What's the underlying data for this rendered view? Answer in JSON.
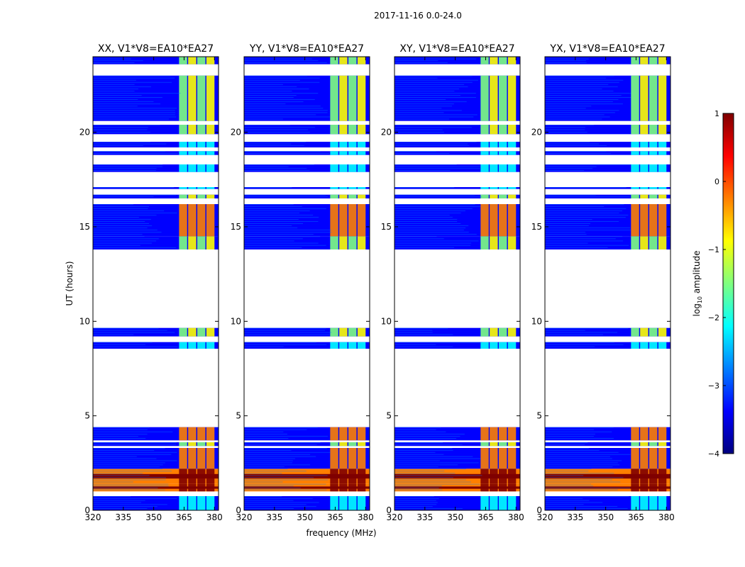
{
  "figure_title": "2017-11-16 0.0-24.0",
  "colors": {
    "jet_stops": [
      "#00007f",
      "#0000ff",
      "#007fff",
      "#00ffff",
      "#7fff7f",
      "#ffff00",
      "#ff7f00",
      "#ff0000",
      "#7f0000"
    ],
    "background": "#ffffff",
    "axis": "#000000"
  },
  "chart_data": [
    {
      "type": "heatmap",
      "title": "XX, V1*V8=EA10*EA27",
      "xlabel": "",
      "ylabel": "UT (hours)",
      "xlim": [
        320,
        382
      ],
      "ylim": [
        0,
        24
      ],
      "xticks": [
        320,
        335,
        350,
        365,
        380
      ],
      "yticks": [
        0,
        5,
        10,
        15,
        20
      ]
    },
    {
      "type": "heatmap",
      "title": "YY, V1*V8=EA10*EA27",
      "xlabel": "frequency (MHz)",
      "ylabel": "",
      "xlim": [
        320,
        382
      ],
      "ylim": [
        0,
        24
      ],
      "xticks": [
        320,
        335,
        350,
        365,
        380
      ],
      "yticks": [
        0,
        5,
        10,
        15,
        20
      ]
    },
    {
      "type": "heatmap",
      "title": "XY, V1*V8=EA10*EA27",
      "xlabel": "",
      "ylabel": "",
      "xlim": [
        320,
        382
      ],
      "ylim": [
        0,
        24
      ],
      "xticks": [
        320,
        335,
        350,
        365,
        380
      ],
      "yticks": [
        0,
        5,
        10,
        15,
        20
      ]
    },
    {
      "type": "heatmap",
      "title": "YX, V1*V8=EA10*EA27",
      "xlabel": "",
      "ylabel": "",
      "xlim": [
        320,
        382
      ],
      "ylim": [
        0,
        24
      ],
      "xticks": [
        320,
        335,
        350,
        365,
        380
      ],
      "yticks": [
        0,
        5,
        10,
        15,
        20
      ]
    }
  ],
  "colorbar": {
    "label": "log10 amplitude",
    "label_main": "log",
    "label_sub": "10",
    "label_tail": " amplitude",
    "range": [
      -4,
      1
    ],
    "ticks": [
      1,
      0,
      -1,
      -2,
      -3,
      -4
    ],
    "tick_labels": [
      "1",
      "0",
      "−1",
      "−2",
      "−3",
      "−4"
    ]
  },
  "data_segments": [
    {
      "t0": 0.0,
      "t1": 0.75,
      "level": "low"
    },
    {
      "t0": 1.0,
      "t1": 1.4,
      "level": "very_high"
    },
    {
      "t0": 1.4,
      "t1": 2.2,
      "level": "very_high"
    },
    {
      "t0": 2.2,
      "t1": 3.3,
      "level": "high"
    },
    {
      "t0": 3.4,
      "t1": 3.6,
      "level": "mid"
    },
    {
      "t0": 3.7,
      "t1": 4.4,
      "level": "high"
    },
    {
      "t0": 8.55,
      "t1": 8.9,
      "level": "low"
    },
    {
      "t0": 9.2,
      "t1": 9.65,
      "level": "mid"
    },
    {
      "t0": 13.8,
      "t1": 14.5,
      "level": "mid"
    },
    {
      "t0": 14.5,
      "t1": 16.2,
      "level": "high"
    },
    {
      "t0": 16.5,
      "t1": 16.7,
      "level": "mid"
    },
    {
      "t0": 17.0,
      "t1": 17.1,
      "level": "low"
    },
    {
      "t0": 17.9,
      "t1": 18.3,
      "level": "low"
    },
    {
      "t0": 18.8,
      "t1": 19.0,
      "level": "low"
    },
    {
      "t0": 19.2,
      "t1": 19.5,
      "level": "low"
    },
    {
      "t0": 19.9,
      "t1": 20.4,
      "level": "mid"
    },
    {
      "t0": 20.6,
      "t1": 23.0,
      "level": "mid"
    },
    {
      "t0": 23.6,
      "t1": 24.0,
      "level": "mid"
    }
  ]
}
